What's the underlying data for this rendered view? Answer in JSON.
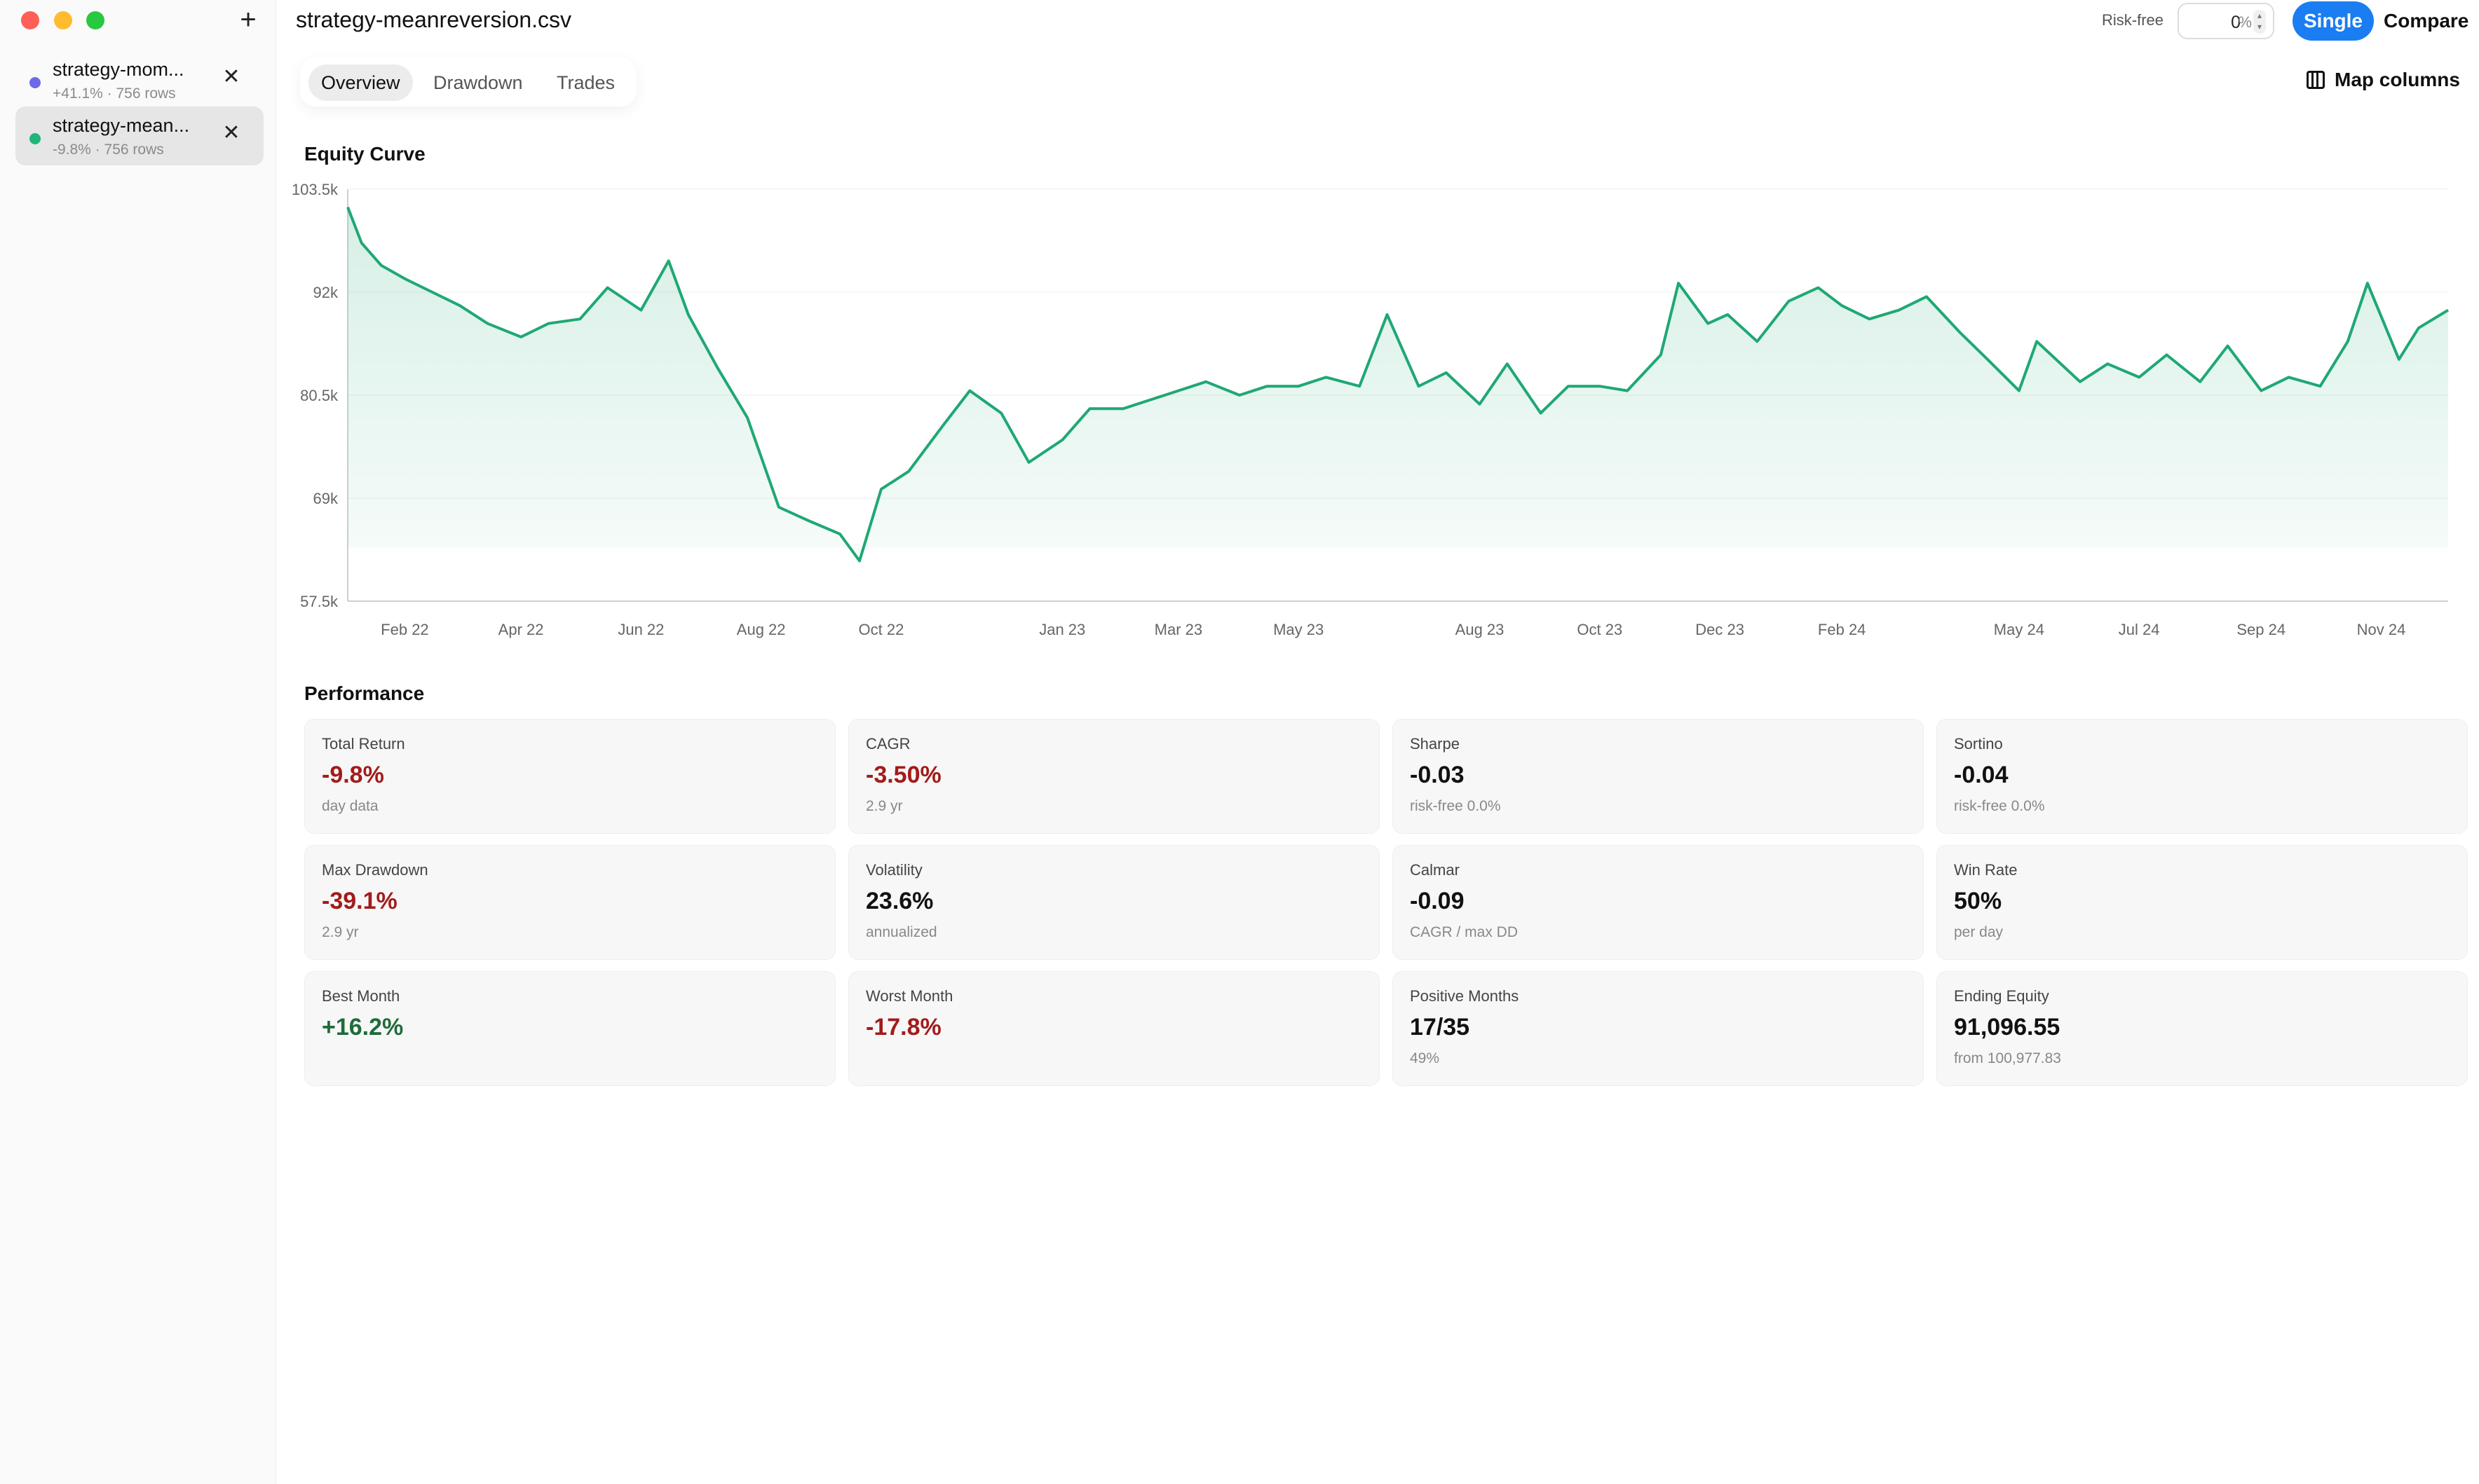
{
  "window": {
    "title": "strategy-meanreversion.csv"
  },
  "sidebar": {
    "add_label": "+",
    "files": [
      {
        "name": "strategy-mom...",
        "meta": "+41.1% · 756 rows",
        "dot_color": "#6b6be8",
        "close": "✕",
        "active": false
      },
      {
        "name": "strategy-mean...",
        "meta": "-9.8% · 756 rows",
        "dot_color": "#1fb67a",
        "close": "✕",
        "active": true
      }
    ]
  },
  "header": {
    "risk_free_label": "Risk-free",
    "risk_free_value": "0",
    "risk_free_unit": "%",
    "mode_single": "Single",
    "mode_compare": "Compare"
  },
  "tabs": {
    "items": [
      "Overview",
      "Drawdown",
      "Trades"
    ],
    "active": "Overview"
  },
  "map_columns_label": "Map columns",
  "colors": {
    "accent": "#1a7df2",
    "line": "#1fa874",
    "negative": "#a31b1b",
    "positive": "#1f6b3a"
  },
  "equity_title": "Equity Curve",
  "performance_title": "Performance",
  "chart_data": {
    "type": "area",
    "title": "Equity Curve",
    "xlabel": "",
    "ylabel": "",
    "ylim": [
      57500,
      103500
    ],
    "yticks": [
      "103.5k",
      "92k",
      "80.5k",
      "69k",
      "57.5k"
    ],
    "ytick_values": [
      103500,
      92000,
      80500,
      69000,
      57500
    ],
    "xticks": [
      "Feb 22",
      "Apr 22",
      "Jun 22",
      "Aug 22",
      "Oct 22",
      "Jan 23",
      "Mar 23",
      "May 23",
      "Aug 23",
      "Oct 23",
      "Dec 23",
      "Feb 24",
      "May 24",
      "Jul 24",
      "Sep 24",
      "Nov 24"
    ],
    "xtick_dates": [
      "2022-02-01",
      "2022-04-01",
      "2022-06-01",
      "2022-08-01",
      "2022-10-01",
      "2023-01-01",
      "2023-03-01",
      "2023-05-01",
      "2023-08-01",
      "2023-10-01",
      "2023-12-01",
      "2024-02-01",
      "2024-05-01",
      "2024-07-01",
      "2024-09-01",
      "2024-11-01"
    ],
    "grid": true,
    "series": [
      {
        "x": [
          "2022-01-03",
          "2022-01-10",
          "2022-01-20",
          "2022-02-01",
          "2022-02-15",
          "2022-03-01",
          "2022-03-15",
          "2022-04-01",
          "2022-04-15",
          "2022-05-01",
          "2022-05-15",
          "2022-06-01",
          "2022-06-15",
          "2022-06-25",
          "2022-07-10",
          "2022-07-25",
          "2022-08-10",
          "2022-08-25",
          "2022-09-10",
          "2022-09-20",
          "2022-10-01",
          "2022-10-15",
          "2022-11-01",
          "2022-11-15",
          "2022-12-01",
          "2022-12-15",
          "2023-01-01",
          "2023-01-15",
          "2023-02-01",
          "2023-02-15",
          "2023-03-01",
          "2023-03-15",
          "2023-04-01",
          "2023-04-15",
          "2023-05-01",
          "2023-05-15",
          "2023-06-01",
          "2023-06-15",
          "2023-07-01",
          "2023-07-15",
          "2023-08-01",
          "2023-08-15",
          "2023-09-01",
          "2023-09-15",
          "2023-10-01",
          "2023-10-15",
          "2023-11-01",
          "2023-11-10",
          "2023-11-25",
          "2023-12-05",
          "2023-12-20",
          "2024-01-05",
          "2024-01-20",
          "2024-02-01",
          "2024-02-15",
          "2024-03-01",
          "2024-03-15",
          "2024-04-01",
          "2024-04-15",
          "2024-05-01",
          "2024-05-10",
          "2024-06-01",
          "2024-06-15",
          "2024-07-01",
          "2024-07-15",
          "2024-08-01",
          "2024-08-15",
          "2024-09-01",
          "2024-09-15",
          "2024-10-01",
          "2024-10-15",
          "2024-10-25",
          "2024-11-10",
          "2024-11-20",
          "2024-12-05"
        ],
        "values": [
          101500,
          97500,
          95000,
          93500,
          92000,
          90500,
          88500,
          87000,
          88500,
          89000,
          92500,
          90000,
          95500,
          89500,
          83500,
          78000,
          68000,
          66500,
          65000,
          62000,
          70000,
          72000,
          77000,
          81000,
          78500,
          73000,
          75500,
          79000,
          79000,
          80000,
          81000,
          82000,
          80500,
          81500,
          81500,
          82500,
          81500,
          89500,
          81500,
          83000,
          79500,
          84000,
          78500,
          81500,
          81500,
          81000,
          85000,
          93000,
          88500,
          89500,
          86500,
          91000,
          92500,
          90500,
          89000,
          90000,
          91500,
          87500,
          84500,
          81000,
          86500,
          82000,
          84000,
          82500,
          85000,
          82000,
          86000,
          81000,
          82500,
          81500,
          86500,
          93000,
          84500,
          88000,
          90000
        ]
      }
    ]
  },
  "metrics": [
    {
      "label": "Total Return",
      "value": "-9.8%",
      "sub": "day data",
      "tone": "neg"
    },
    {
      "label": "CAGR",
      "value": "-3.50%",
      "sub": "2.9 yr",
      "tone": "neg"
    },
    {
      "label": "Sharpe",
      "value": "-0.03",
      "sub": "risk-free 0.0%",
      "tone": "neutral"
    },
    {
      "label": "Sortino",
      "value": "-0.04",
      "sub": "risk-free 0.0%",
      "tone": "neutral"
    },
    {
      "label": "Max Drawdown",
      "value": "-39.1%",
      "sub": "2.9 yr",
      "tone": "neg"
    },
    {
      "label": "Volatility",
      "value": "23.6%",
      "sub": "annualized",
      "tone": "neutral"
    },
    {
      "label": "Calmar",
      "value": "-0.09",
      "sub": "CAGR / max DD",
      "tone": "neutral"
    },
    {
      "label": "Win Rate",
      "value": "50%",
      "sub": "per day",
      "tone": "neutral"
    },
    {
      "label": "Best Month",
      "value": "+16.2%",
      "sub": "",
      "tone": "pos"
    },
    {
      "label": "Worst Month",
      "value": "-17.8%",
      "sub": "",
      "tone": "neg"
    },
    {
      "label": "Positive Months",
      "value": "17/35",
      "sub": "49%",
      "tone": "neutral"
    },
    {
      "label": "Ending Equity",
      "value": "91,096.55",
      "sub": "from 100,977.83",
      "tone": "neutral"
    }
  ]
}
